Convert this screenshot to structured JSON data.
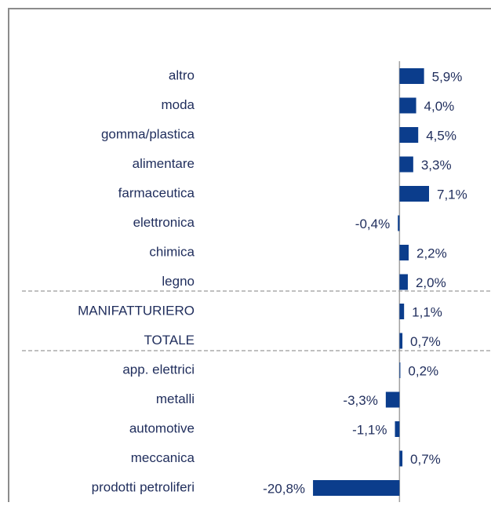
{
  "chart_data": {
    "type": "barh",
    "categories": [
      "altro",
      "moda",
      "gomma/plastica",
      "alimentare",
      "farmaceutica",
      "elettronica",
      "chimica",
      "legno",
      "MANIFATTURIERO",
      "TOTALE",
      "app. elettrici",
      "metalli",
      "automotive",
      "meccanica",
      "prodotti petroliferi"
    ],
    "values": [
      5.9,
      4.0,
      4.5,
      3.3,
      7.1,
      -0.4,
      2.2,
      2.0,
      1.1,
      0.7,
      0.2,
      -3.3,
      -1.1,
      0.7,
      -20.8
    ],
    "value_labels": [
      "5,9%",
      "4,0%",
      "4,5%",
      "3,3%",
      "7,1%",
      "-0,4%",
      "2,2%",
      "2,0%",
      "1,1%",
      "0,7%",
      "0,2%",
      "-3,3%",
      "-1,1%",
      "0,7%",
      "-20,8%"
    ],
    "color": "#0b3d8c",
    "xlim": [
      -21,
      22
    ]
  }
}
